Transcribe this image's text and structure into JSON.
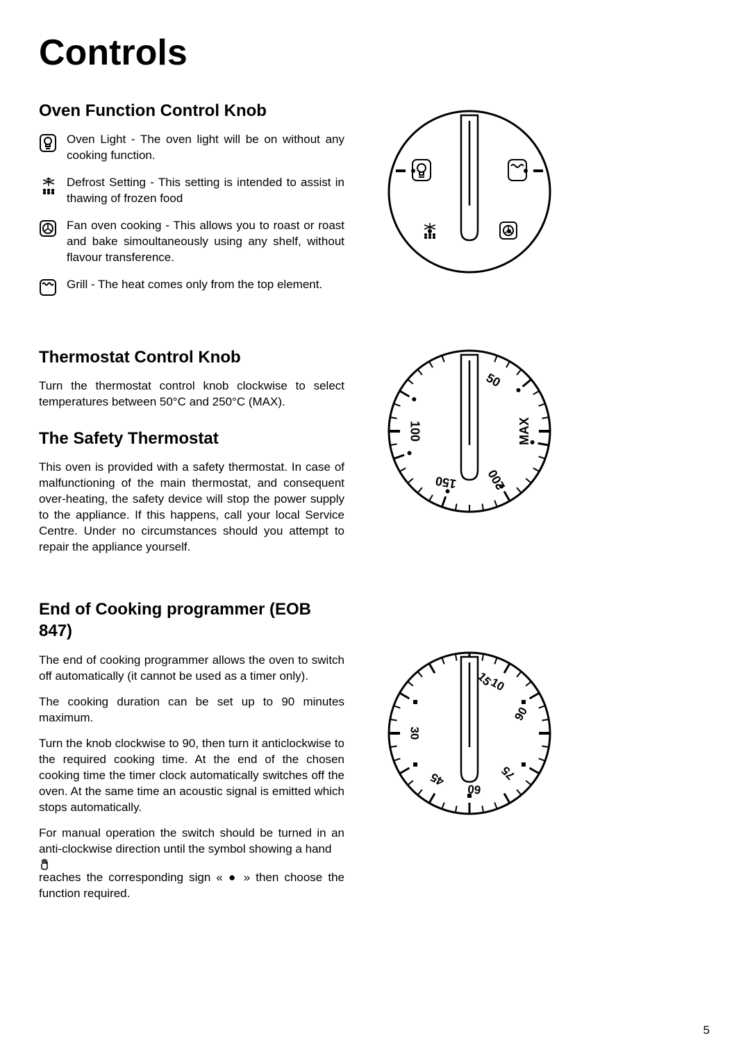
{
  "page_number": "5",
  "title": "Controls",
  "oven_function": {
    "heading": "Oven Function Control Knob",
    "items": [
      {
        "icon": "oven-light-icon",
        "text": "Oven Light - The oven light will be on without any cooking function."
      },
      {
        "icon": "defrost-icon",
        "text": "Defrost Setting - This setting is intended to assist in thawing of frozen food"
      },
      {
        "icon": "fan-oven-icon",
        "text": "Fan oven cooking - This allows you to roast or roast and bake simoultaneously using any shelf, without flavour transference."
      },
      {
        "icon": "grill-icon",
        "text": "Grill - The heat comes only from the top element."
      }
    ]
  },
  "thermostat": {
    "heading": "Thermostat Control Knob",
    "para": "Turn the thermostat control knob clockwise to select temperatures between 50°C and 250°C (MAX).",
    "labels": [
      "50",
      "100",
      "150",
      "200",
      "MAX"
    ]
  },
  "safety": {
    "heading": "The Safety Thermostat",
    "para": "This oven is provided with a safety thermostat. In case of malfunctioning of the main thermostat, and consequent over-heating, the safety device will stop the power supply to the appliance. If this happens, call your local Service Centre. Under no circumstances should you attempt to repair the appliance yourself."
  },
  "programmer": {
    "heading": "End of Cooking programmer (EOB 847)",
    "p1": "The end of cooking programmer allows the oven to switch off automatically (it cannot be used as a timer only).",
    "p2": "The cooking duration can be set up to 90 minutes maximum.",
    "p3": "Turn the knob clockwise to 90, then turn it anticlockwise to the required cooking time. At the end of the chosen cooking time the timer clock automatically switches off the oven. At the same time an acoustic signal is emitted which stops automatically.",
    "p4a": "For manual operation the switch should be turned in an anti-clockwise direction until the symbol showing a hand ",
    "p4b": " reaches the corresponding sign « ● » then choose the function required.",
    "labels": [
      "10",
      "15",
      "30",
      "45",
      "60",
      "75",
      "90"
    ]
  },
  "style": {
    "stroke": "#000000",
    "stroke_width_outer": 3,
    "stroke_width_inner": 2,
    "font_family": "Arial"
  }
}
